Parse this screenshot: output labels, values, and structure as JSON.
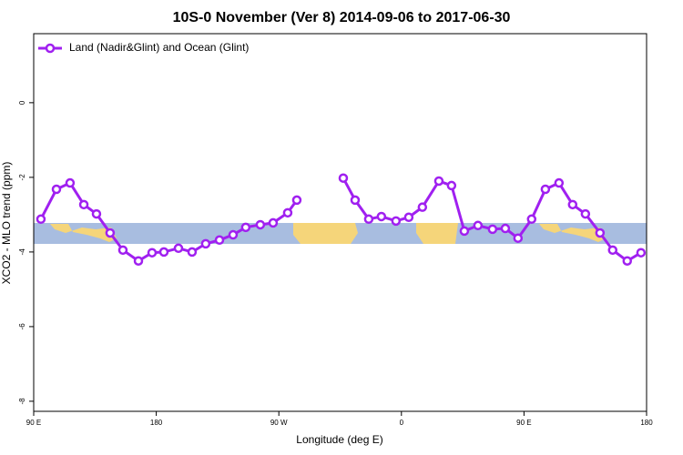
{
  "chart_data": {
    "type": "line",
    "title": "10S-0 November (Ver 8)   2014-09-06 to 2017-06-30",
    "x_label": "Longitude (deg E)",
    "y_label": "XCO2 - MLO trend (ppm)",
    "xlim": [
      90,
      540
    ],
    "ylim": [
      -8.27,
      1.85
    ],
    "xticks": [
      {
        "value": 90,
        "label": "90 E"
      },
      180,
      {
        "value": 270,
        "label": "90 W"
      },
      {
        "value": 360,
        "label": "0"
      },
      {
        "value": 450,
        "label": "90 E"
      },
      {
        "value": 540,
        "label": "180"
      }
    ],
    "yticks": [
      0,
      -2,
      -4,
      -6,
      -8
    ],
    "legend": "top-left",
    "x": [
      95.3,
      106.7,
      116.7,
      126.8,
      136.1,
      146.1,
      155.5,
      166.9,
      176.9,
      185.6,
      196.3,
      206.3,
      216.3,
      226.4,
      236.4,
      245.7,
      256.4,
      265.8,
      276.5,
      283.2,
      300,
      317.3,
      326.0,
      336.0,
      345.3,
      356.0,
      365.4,
      375.4,
      387.5,
      396.8,
      406.2,
      416.2,
      426.9,
      436.3,
      445.6,
      455.6,
      465.7,
      475.7,
      485.7,
      495.1,
      505.8,
      515.1,
      525.8,
      535.9
    ],
    "series": [
      {
        "name": "Land (Nadir&Glint) and Ocean (Glint)",
        "color": "#a020f0",
        "values": [
          -3.12,
          -2.32,
          -2.15,
          -2.73,
          -2.98,
          -3.49,
          -3.95,
          -4.24,
          -4.02,
          -4.0,
          -3.9,
          -4.0,
          -3.78,
          -3.68,
          -3.54,
          -3.34,
          -3.27,
          -3.22,
          -2.95,
          -2.61,
          null,
          -2.02,
          -2.61,
          -3.12,
          -3.05,
          -3.17,
          -3.07,
          -2.8,
          -2.1,
          -2.22,
          -3.44,
          -3.29,
          -3.39,
          -3.37,
          -3.63,
          -3.12,
          -2.32,
          -2.15,
          -2.73,
          -2.98,
          -3.49,
          -3.95,
          -4.24,
          -4.02
        ]
      }
    ]
  }
}
